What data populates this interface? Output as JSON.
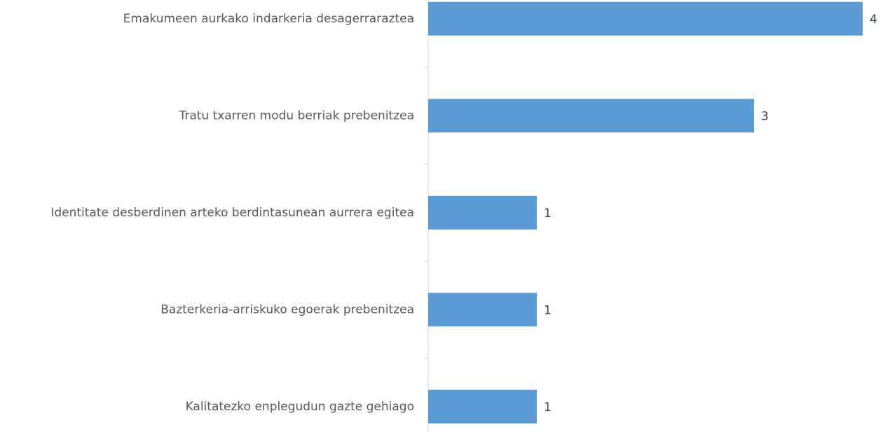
{
  "chart_data": {
    "type": "bar",
    "orientation": "horizontal",
    "categories": [
      "Emakumeen aurkako indarkeria desagerraraztea",
      "Tratu txarren modu berriak prebenitzea",
      "Identitate desberdinen arteko berdintasunean aurrera egitea",
      "Bazterkeria-arriskuko egoerak prebenitzea",
      "Kalitatezko enplegudun gazte gehiago"
    ],
    "values": [
      4,
      3,
      1,
      1,
      1
    ],
    "color": "#5b9bd5",
    "xlim": [
      0,
      4
    ]
  }
}
